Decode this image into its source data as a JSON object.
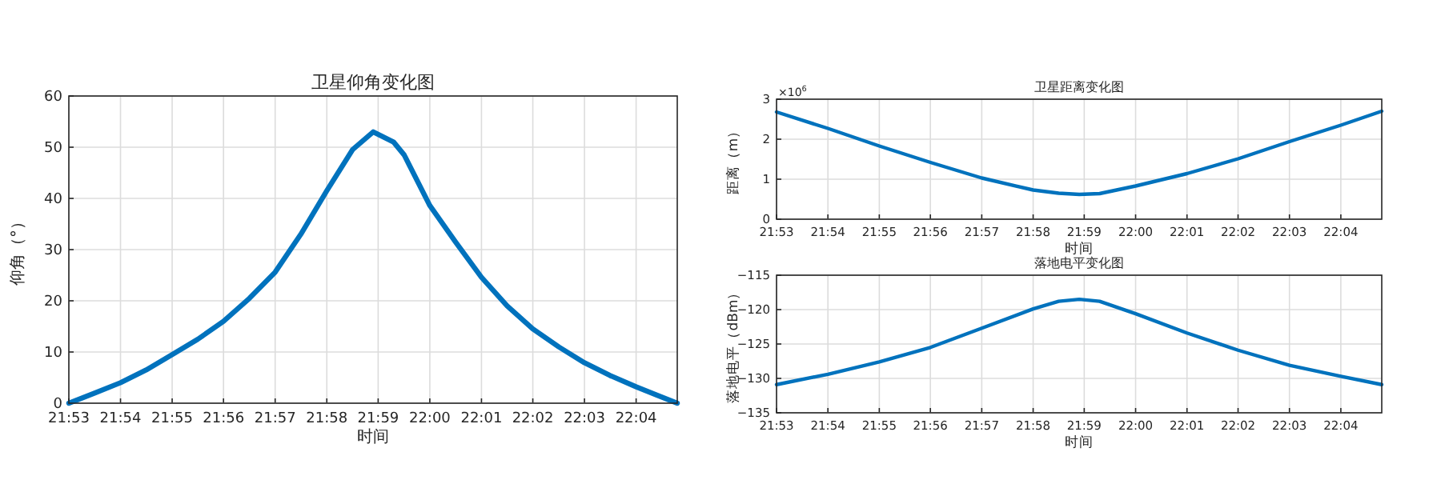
{
  "chart_data": [
    {
      "type": "line",
      "title": "卫星仰角变化图",
      "xlabel": "时间",
      "ylabel": "仰角（°）",
      "grid": true,
      "x": [
        21.8833,
        21.8917,
        21.9,
        21.9083,
        21.9167,
        21.925,
        21.9333,
        21.9417,
        21.95,
        21.9583,
        21.9667,
        21.975,
        21.9817,
        21.9883,
        21.9917,
        22.0,
        22.0083,
        22.0167,
        22.025,
        22.0333,
        22.0417,
        22.05,
        22.0583,
        22.0667,
        22.0733,
        22.08
      ],
      "series": [
        {
          "color": "#0072bd",
          "values": [
            0,
            2,
            4,
            6.5,
            9.5,
            12.5,
            16,
            20.5,
            25.6,
            33,
            41.5,
            49.5,
            53,
            51,
            48.5,
            38.6,
            31.5,
            24.6,
            19,
            14.5,
            11,
            7.9,
            5.4,
            3.2,
            1.6,
            0
          ]
        }
      ],
      "xlim": [
        21.8833,
        22.08
      ],
      "ylim": [
        0,
        60
      ],
      "yticks": [
        0,
        10,
        20,
        30,
        40,
        50,
        60
      ],
      "xticks": [
        {
          "value": 21.8833,
          "label": "21:53"
        },
        {
          "value": 21.9,
          "label": "21:54"
        },
        {
          "value": 21.9167,
          "label": "21:55"
        },
        {
          "value": 21.9333,
          "label": "21:56"
        },
        {
          "value": 21.95,
          "label": "21:57"
        },
        {
          "value": 21.9667,
          "label": "21:58"
        },
        {
          "value": 21.9833,
          "label": "21:59"
        },
        {
          "value": 22.0,
          "label": "22:00"
        },
        {
          "value": 22.0167,
          "label": "22:01"
        },
        {
          "value": 22.0333,
          "label": "22:02"
        },
        {
          "value": 22.05,
          "label": "22:03"
        },
        {
          "value": 22.0667,
          "label": "22:04"
        }
      ]
    },
    {
      "type": "line",
      "title": "卫星距离变化图",
      "xlabel": "时间",
      "ylabel": "距离（m）",
      "grid": true,
      "annotations": [
        "×10$^{6}$"
      ],
      "x": [
        21.8833,
        21.9,
        21.9167,
        21.9333,
        21.95,
        21.9667,
        21.975,
        21.9817,
        21.9883,
        22.0,
        22.0167,
        22.0333,
        22.05,
        22.0667,
        22.08
      ],
      "series": [
        {
          "color": "#0072bd",
          "values": [
            2.68,
            2.27,
            1.83,
            1.42,
            1.03,
            0.73,
            0.65,
            0.62,
            0.64,
            0.83,
            1.14,
            1.51,
            1.94,
            2.35,
            2.7
          ]
        }
      ],
      "xlim": [
        21.8833,
        22.08
      ],
      "ylim": [
        0,
        3
      ],
      "yticks": [
        0,
        1,
        2,
        3
      ],
      "xticks": [
        {
          "value": 21.8833,
          "label": "21:53"
        },
        {
          "value": 21.9,
          "label": "21:54"
        },
        {
          "value": 21.9167,
          "label": "21:55"
        },
        {
          "value": 21.9333,
          "label": "21:56"
        },
        {
          "value": 21.95,
          "label": "21:57"
        },
        {
          "value": 21.9667,
          "label": "21:58"
        },
        {
          "value": 21.9833,
          "label": "21:59"
        },
        {
          "value": 22.0,
          "label": "22:00"
        },
        {
          "value": 22.0167,
          "label": "22:01"
        },
        {
          "value": 22.0333,
          "label": "22:02"
        },
        {
          "value": 22.05,
          "label": "22:03"
        },
        {
          "value": 22.0667,
          "label": "22:04"
        }
      ]
    },
    {
      "type": "line",
      "title": "落地电平变化图",
      "xlabel": "时间",
      "ylabel": "落地电平（dBm）",
      "grid": true,
      "x": [
        21.8833,
        21.9,
        21.9167,
        21.9333,
        21.95,
        21.9667,
        21.975,
        21.9817,
        21.9883,
        22.0,
        22.0167,
        22.0333,
        22.05,
        22.0667,
        22.08
      ],
      "series": [
        {
          "color": "#0072bd",
          "values": [
            -130.9,
            -129.4,
            -127.6,
            -125.5,
            -122.7,
            -119.9,
            -118.8,
            -118.5,
            -118.8,
            -120.6,
            -123.4,
            -125.9,
            -128.1,
            -129.7,
            -130.9
          ]
        }
      ],
      "xlim": [
        21.8833,
        22.08
      ],
      "ylim": [
        -135,
        -115
      ],
      "yticks": [
        -135,
        -130,
        -125,
        -120,
        -115
      ],
      "xticks": [
        {
          "value": 21.8833,
          "label": "21:53"
        },
        {
          "value": 21.9,
          "label": "21:54"
        },
        {
          "value": 21.9167,
          "label": "21:55"
        },
        {
          "value": 21.9333,
          "label": "21:56"
        },
        {
          "value": 21.95,
          "label": "21:57"
        },
        {
          "value": 21.9667,
          "label": "21:58"
        },
        {
          "value": 21.9833,
          "label": "21:59"
        },
        {
          "value": 22.0,
          "label": "22:00"
        },
        {
          "value": 22.0167,
          "label": "22:01"
        },
        {
          "value": 22.0333,
          "label": "22:02"
        },
        {
          "value": 22.05,
          "label": "22:03"
        },
        {
          "value": 22.0667,
          "label": "22:04"
        }
      ]
    }
  ]
}
